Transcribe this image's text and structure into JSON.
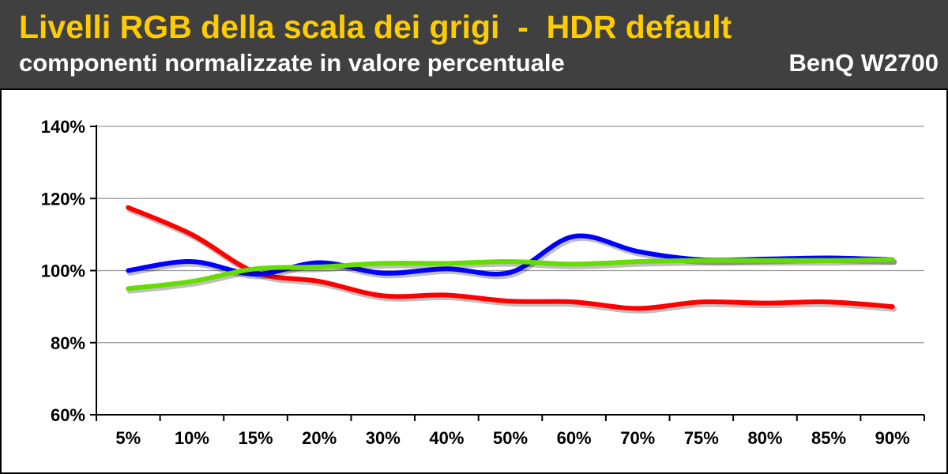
{
  "header": {
    "title": "Livelli RGB della scala dei grigi  -  HDR default",
    "subtitle": "componenti normalizzate in valore percentuale",
    "brand": "BenQ W2700"
  },
  "chart_data": {
    "type": "line",
    "title": "Livelli RGB della scala dei grigi  -  HDR default",
    "subtitle": "componenti normalizzate in valore percentuale",
    "categories": [
      "5%",
      "10%",
      "15%",
      "20%",
      "30%",
      "40%",
      "50%",
      "60%",
      "70%",
      "75%",
      "80%",
      "85%",
      "90%"
    ],
    "y_tick_labels": [
      "60%",
      "80%",
      "100%",
      "120%",
      "140%"
    ],
    "y_ticks": [
      60,
      80,
      100,
      120,
      140
    ],
    "ylim": [
      60,
      140
    ],
    "grid": "horizontal",
    "series": [
      {
        "color": "#ff0000",
        "values": [
          117.5,
          110,
          99.5,
          97,
          93,
          93.2,
          91.5,
          91.3,
          89.5,
          91.3,
          91,
          91.3,
          90
        ]
      },
      {
        "color": "#0000ff",
        "values": [
          100,
          102.5,
          99,
          102.2,
          99.3,
          100.5,
          99.5,
          109.5,
          105.3,
          103,
          103.2,
          103.5,
          103
        ]
      },
      {
        "color": "#66dd00",
        "values": [
          95,
          97,
          100.5,
          101,
          102,
          102,
          102.5,
          101.8,
          102.5,
          102.8,
          102.8,
          102.8,
          103
        ]
      }
    ]
  }
}
